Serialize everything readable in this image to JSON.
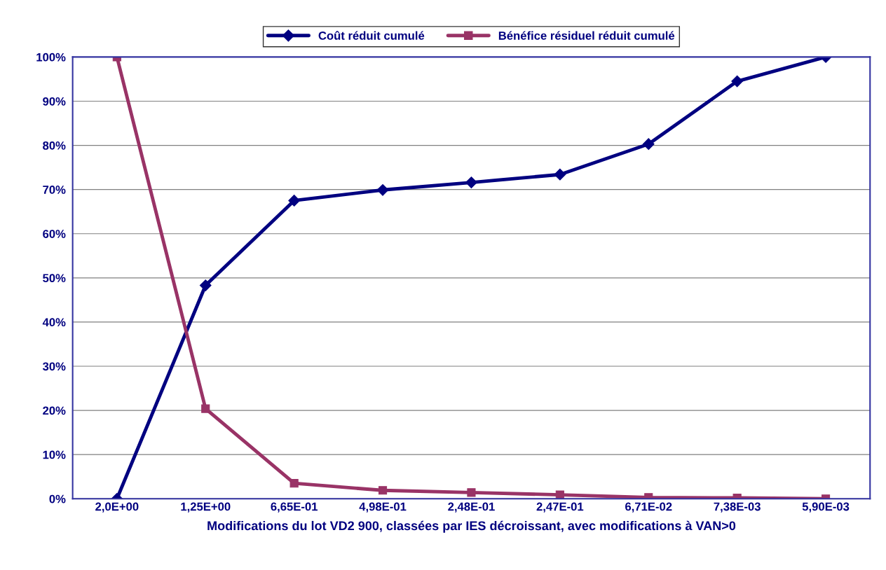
{
  "chart_data": {
    "type": "line",
    "xlabel": "Modifications du lot VD2 900, classées par IES décroissant, avec modifications à VAN>0",
    "categories": [
      "2,0E+00",
      "1,25E+00",
      "6,65E-01",
      "4,98E-01",
      "2,48E-01",
      "2,47E-01",
      "6,71E-02",
      "7,38E-03",
      "5,90E-03"
    ],
    "series": [
      {
        "name": "Coût réduit cumulé",
        "color": "#000080",
        "marker": "diamond",
        "values": [
          0,
          48.3,
          67.5,
          69.9,
          71.6,
          73.4,
          80.3,
          94.5,
          100
        ]
      },
      {
        "name": "Bénéfice résiduel réduit cumulé",
        "color": "#993366",
        "marker": "square",
        "values": [
          100,
          20.4,
          3.5,
          1.9,
          1.4,
          0.9,
          0.3,
          0.2,
          0
        ]
      }
    ],
    "ylim": [
      0,
      100
    ],
    "yticks": [
      {
        "value": 0,
        "label": "0%"
      },
      {
        "value": 10,
        "label": "10%"
      },
      {
        "value": 20,
        "label": "20%"
      },
      {
        "value": 30,
        "label": "30%"
      },
      {
        "value": 40,
        "label": "40%"
      },
      {
        "value": 50,
        "label": "50%"
      },
      {
        "value": 60,
        "label": "60%"
      },
      {
        "value": 70,
        "label": "70%"
      },
      {
        "value": 80,
        "label": "80%"
      },
      {
        "value": 90,
        "label": "90%"
      },
      {
        "value": 100,
        "label": "100%"
      }
    ],
    "grid": "y",
    "legend": "top",
    "line_style": "solid"
  }
}
